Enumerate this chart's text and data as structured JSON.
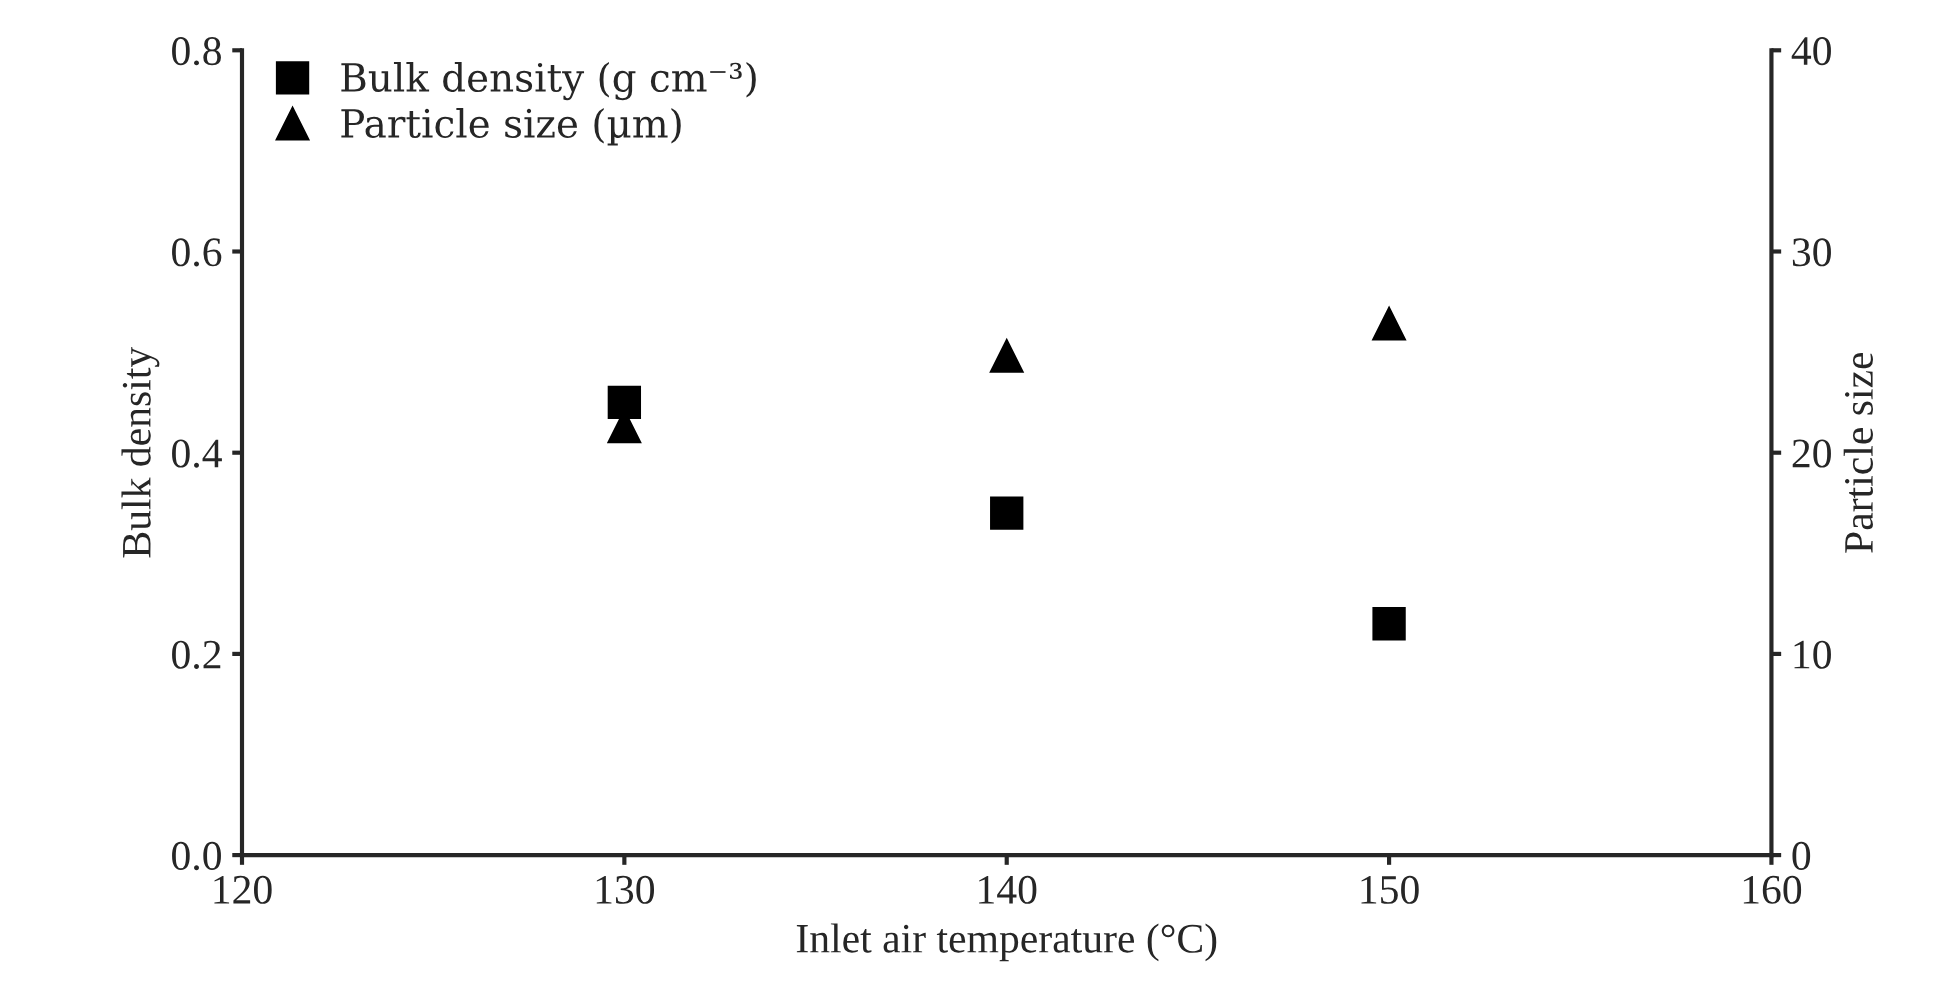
{
  "chart_data": {
    "type": "scatter",
    "xlabel": "Inlet air temperature (°C)",
    "ylabel": "Bulk density",
    "y2label": "Particle size",
    "x": [
      130,
      140,
      150
    ],
    "series": [
      {
        "name": "Bulk density (g cm⁻³)",
        "color": "#000000",
        "values": [
          0.45,
          0.34,
          0.23
        ],
        "marker": "square"
      },
      {
        "name": "Particle size (µm)",
        "color": "#000000",
        "values": [
          21.3,
          24.8,
          26.4
        ],
        "marker": "triangle",
        "axis": "y2"
      }
    ],
    "xlim": [
      120,
      160
    ],
    "xticks": [
      120,
      130,
      140,
      150,
      160
    ],
    "ylim": [
      0,
      0.8
    ],
    "yticks": [
      {
        "value": 0,
        "label": "0.0"
      },
      {
        "value": 0.2,
        "label": "0.2"
      },
      {
        "value": 0.4,
        "label": "0.4"
      },
      {
        "value": 0.6,
        "label": "0.6"
      },
      {
        "value": 0.8,
        "label": "0.8"
      }
    ],
    "y2lim": [
      0,
      40
    ],
    "y2ticks": [
      0,
      10,
      20,
      30,
      40
    ],
    "grid": false,
    "legend": "top left"
  }
}
